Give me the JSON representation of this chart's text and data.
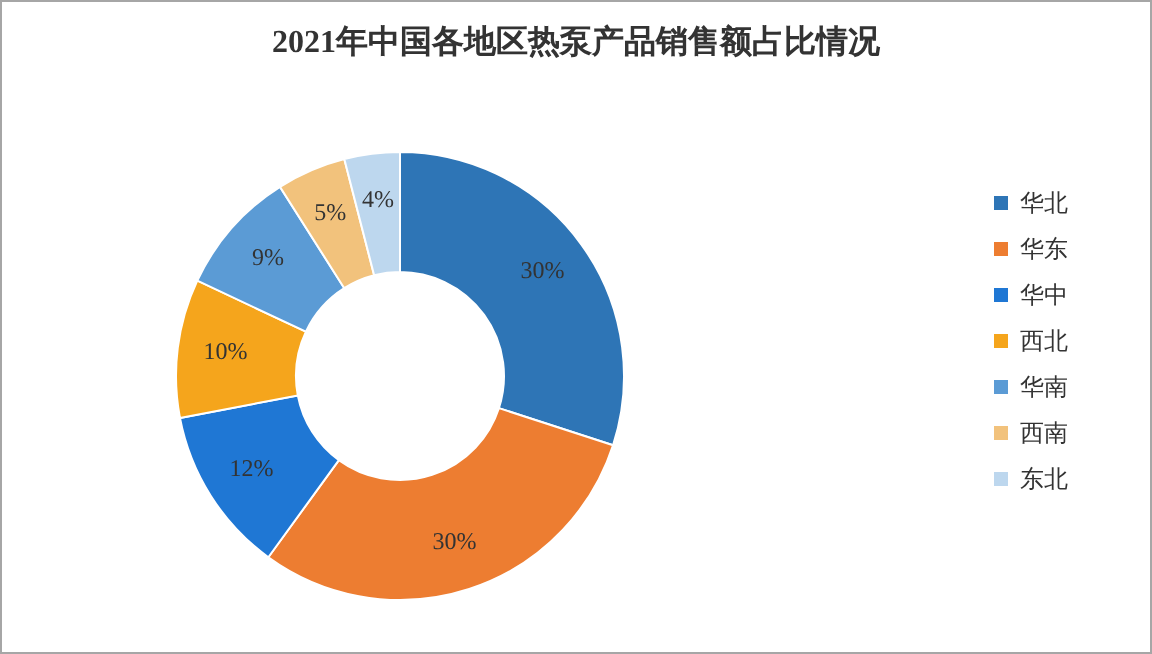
{
  "chart_data": {
    "type": "donut",
    "title": "2021年中国各地区热泵产品销售额占比情况",
    "categories": [
      "华北",
      "华东",
      "华中",
      "西北",
      "华南",
      "西南",
      "东北"
    ],
    "values": [
      30,
      30,
      12,
      10,
      9,
      5,
      4
    ],
    "value_labels": [
      "30%",
      "30%",
      "12%",
      "10%",
      "9%",
      "5%",
      "4%"
    ],
    "colors": [
      "#2e75b6",
      "#ed7d31",
      "#1f77d4",
      "#f5a51c",
      "#5b9bd5",
      "#f2c27c",
      "#bdd7ee"
    ],
    "legend": "right"
  }
}
